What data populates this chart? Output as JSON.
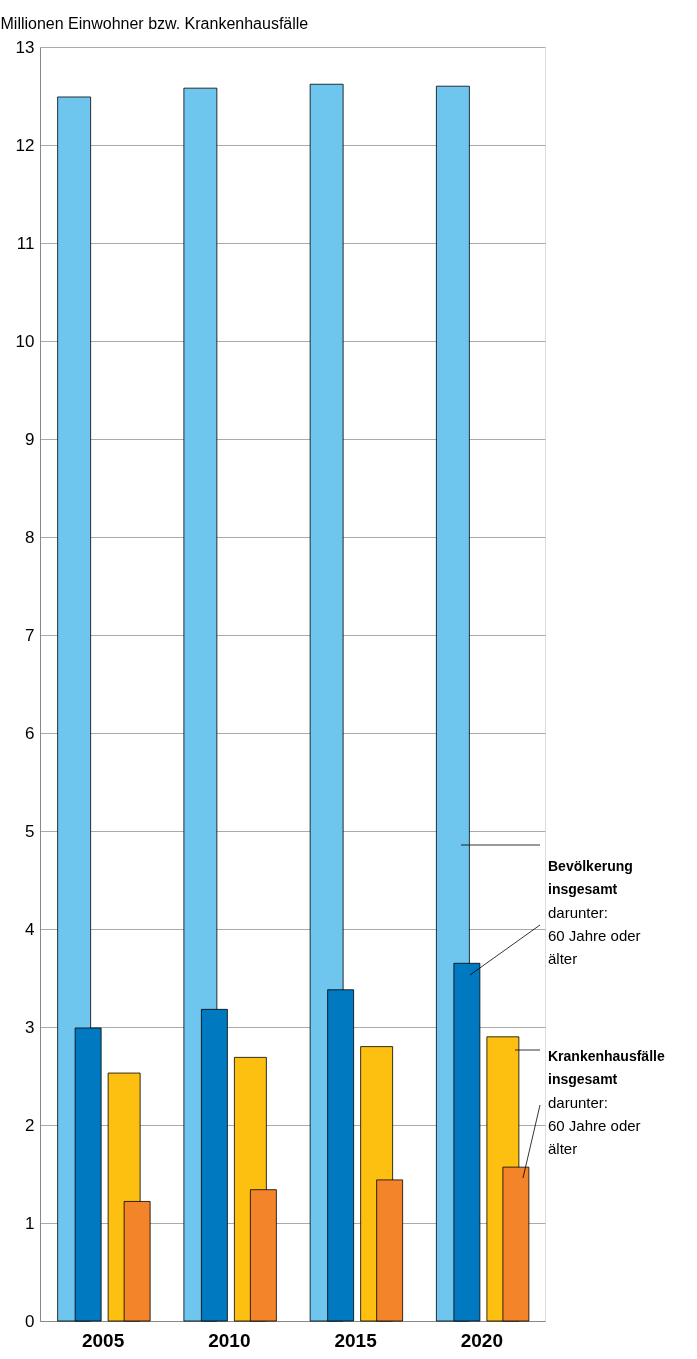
{
  "chart_data": {
    "type": "bar",
    "ylabel": "Millionen Einwohner bzw. Krankenhausfälle",
    "categories": [
      "2005",
      "2010",
      "2015",
      "2020"
    ],
    "series": [
      {
        "name": "Bevölkerung insgesamt",
        "color": "#6ec6ef",
        "values": [
          12.49,
          12.58,
          12.62,
          12.6
        ]
      },
      {
        "name": "darunter: 60 Jahre oder älter",
        "color": "#0079c1",
        "values": [
          2.99,
          3.18,
          3.38,
          3.65
        ]
      },
      {
        "name": "Krankenhausfälle insgesamt",
        "color": "#fdc010",
        "values": [
          2.53,
          2.69,
          2.8,
          2.9
        ]
      },
      {
        "name": "darunter: 60 Jahre oder älter",
        "color": "#f4842a",
        "values": [
          1.22,
          1.34,
          1.44,
          1.57
        ]
      }
    ],
    "ylim": [
      0,
      13
    ],
    "yticks": [
      0,
      1,
      2,
      3,
      4,
      5,
      6,
      7,
      8,
      9,
      10,
      11,
      12,
      13
    ],
    "grid": "y"
  }
}
